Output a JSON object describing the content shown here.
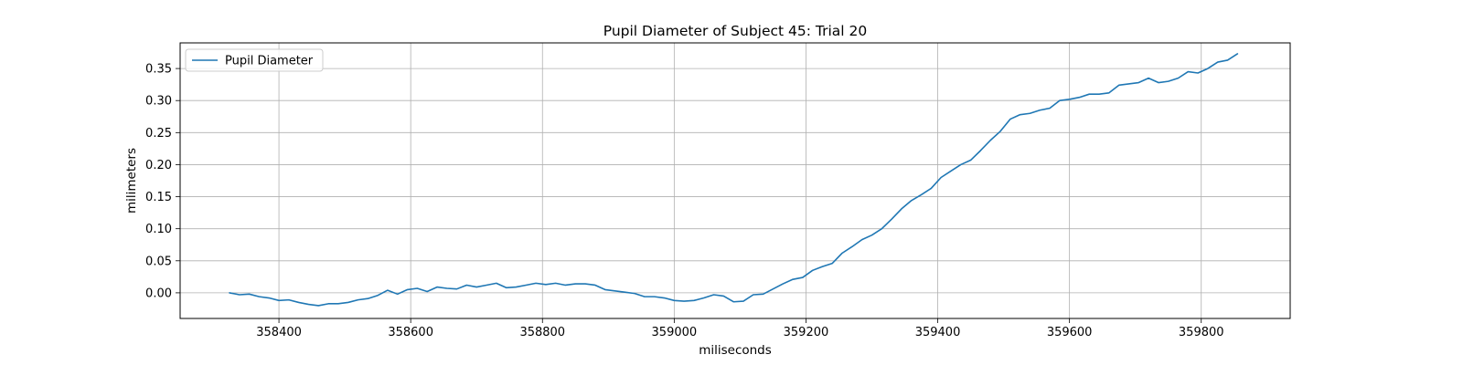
{
  "chart_data": {
    "type": "line",
    "title": "Pupil Diameter of Subject 45: Trial 20",
    "xlabel": "miliseconds",
    "ylabel": "milimeters",
    "xlim": [
      358250,
      359935
    ],
    "ylim": [
      -0.04,
      0.39
    ],
    "xticks": [
      358400,
      358600,
      358800,
      359000,
      359200,
      359400,
      359600,
      359800
    ],
    "yticks": [
      0.0,
      0.05,
      0.1,
      0.15,
      0.2,
      0.25,
      0.3,
      0.35
    ],
    "xtick_labels": [
      "358400",
      "358600",
      "358800",
      "359000",
      "359200",
      "359400",
      "359600",
      "359800"
    ],
    "ytick_labels": [
      "0.00",
      "0.05",
      "0.10",
      "0.15",
      "0.20",
      "0.25",
      "0.30",
      "0.35"
    ],
    "grid": true,
    "legend_position": "upper left",
    "series": [
      {
        "name": "Pupil Diameter",
        "color": "#1f77b4",
        "x": [
          358325,
          358340,
          358355,
          358370,
          358385,
          358400,
          358415,
          358430,
          358445,
          358460,
          358475,
          358490,
          358505,
          358520,
          358535,
          358550,
          358565,
          358580,
          358595,
          358610,
          358625,
          358640,
          358655,
          358670,
          358685,
          358700,
          358715,
          358730,
          358745,
          358760,
          358775,
          358790,
          358805,
          358820,
          358835,
          358850,
          358865,
          358880,
          358895,
          358910,
          358925,
          358940,
          358955,
          358970,
          358985,
          359000,
          359015,
          359030,
          359045,
          359060,
          359075,
          359090,
          359105,
          359120,
          359135,
          359150,
          359165,
          359180,
          359195,
          359210,
          359225,
          359240,
          359255,
          359270,
          359285,
          359300,
          359315,
          359330,
          359345,
          359360,
          359375,
          359390,
          359405,
          359420,
          359435,
          359450,
          359465,
          359480,
          359495,
          359510,
          359525,
          359540,
          359555,
          359570,
          359585,
          359600,
          359615,
          359630,
          359645,
          359660,
          359675,
          359690,
          359705,
          359720,
          359735,
          359750,
          359765,
          359780,
          359795,
          359810,
          359825,
          359840,
          359855
        ],
        "values": [
          0.0,
          -0.003,
          -0.002,
          -0.006,
          -0.008,
          -0.012,
          -0.011,
          -0.015,
          -0.018,
          -0.02,
          -0.017,
          -0.017,
          -0.015,
          -0.011,
          -0.009,
          -0.004,
          0.004,
          -0.002,
          0.005,
          0.007,
          0.002,
          0.009,
          0.007,
          0.006,
          0.012,
          0.009,
          0.012,
          0.015,
          0.008,
          0.009,
          0.012,
          0.015,
          0.013,
          0.015,
          0.012,
          0.014,
          0.014,
          0.012,
          0.005,
          0.003,
          0.001,
          -0.001,
          -0.006,
          -0.006,
          -0.008,
          -0.012,
          -0.013,
          -0.012,
          -0.008,
          -0.003,
          -0.005,
          -0.014,
          -0.013,
          -0.003,
          -0.002,
          0.006,
          0.014,
          0.021,
          0.024,
          0.035,
          0.041,
          0.046,
          0.062,
          0.072,
          0.083,
          0.09,
          0.1,
          0.115,
          0.131,
          0.144,
          0.153,
          0.163,
          0.18,
          0.19,
          0.2,
          0.207,
          0.222,
          0.238,
          0.252,
          0.271,
          0.278,
          0.28,
          0.285,
          0.288,
          0.3,
          0.302,
          0.305,
          0.31,
          0.31,
          0.312,
          0.324,
          0.326,
          0.328,
          0.335,
          0.328,
          0.33,
          0.335,
          0.345,
          0.343,
          0.35,
          0.36,
          0.363,
          0.373
        ]
      }
    ]
  }
}
